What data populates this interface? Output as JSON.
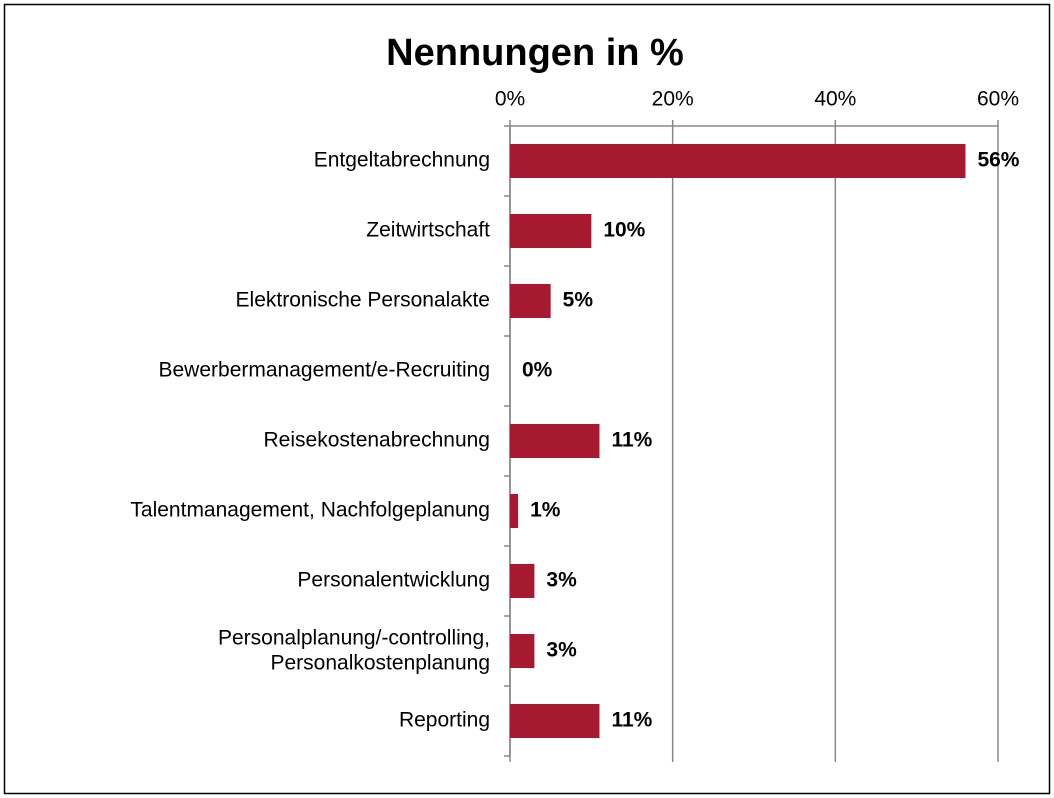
{
  "chart_data": {
    "type": "bar",
    "orientation": "horizontal",
    "title": "Nennungen in %",
    "categories": [
      "Entgeltabrechnung",
      "Zeitwirtschaft",
      "Elektronische Personalakte",
      "Bewerbermanagement/e-Recruiting",
      "Reisekostenabrechnung",
      "Talentmanagement, Nachfolgeplanung",
      "Personalentwicklung",
      "Personalplanung/-controlling,\nPersonalkostenplanung",
      "Reporting"
    ],
    "values": [
      56,
      10,
      5,
      0,
      11,
      1,
      3,
      3,
      11
    ],
    "value_labels": [
      "56%",
      "10%",
      "5%",
      "0%",
      "11%",
      "1%",
      "3%",
      "3%",
      "11%"
    ],
    "color": "#a6192e",
    "xlim": [
      0,
      60
    ],
    "xticks": [
      {
        "value": 0,
        "label": "0%"
      },
      {
        "value": 20,
        "label": "20%"
      },
      {
        "value": 40,
        "label": "40%"
      },
      {
        "value": 60,
        "label": "60%"
      }
    ],
    "grid": true
  }
}
